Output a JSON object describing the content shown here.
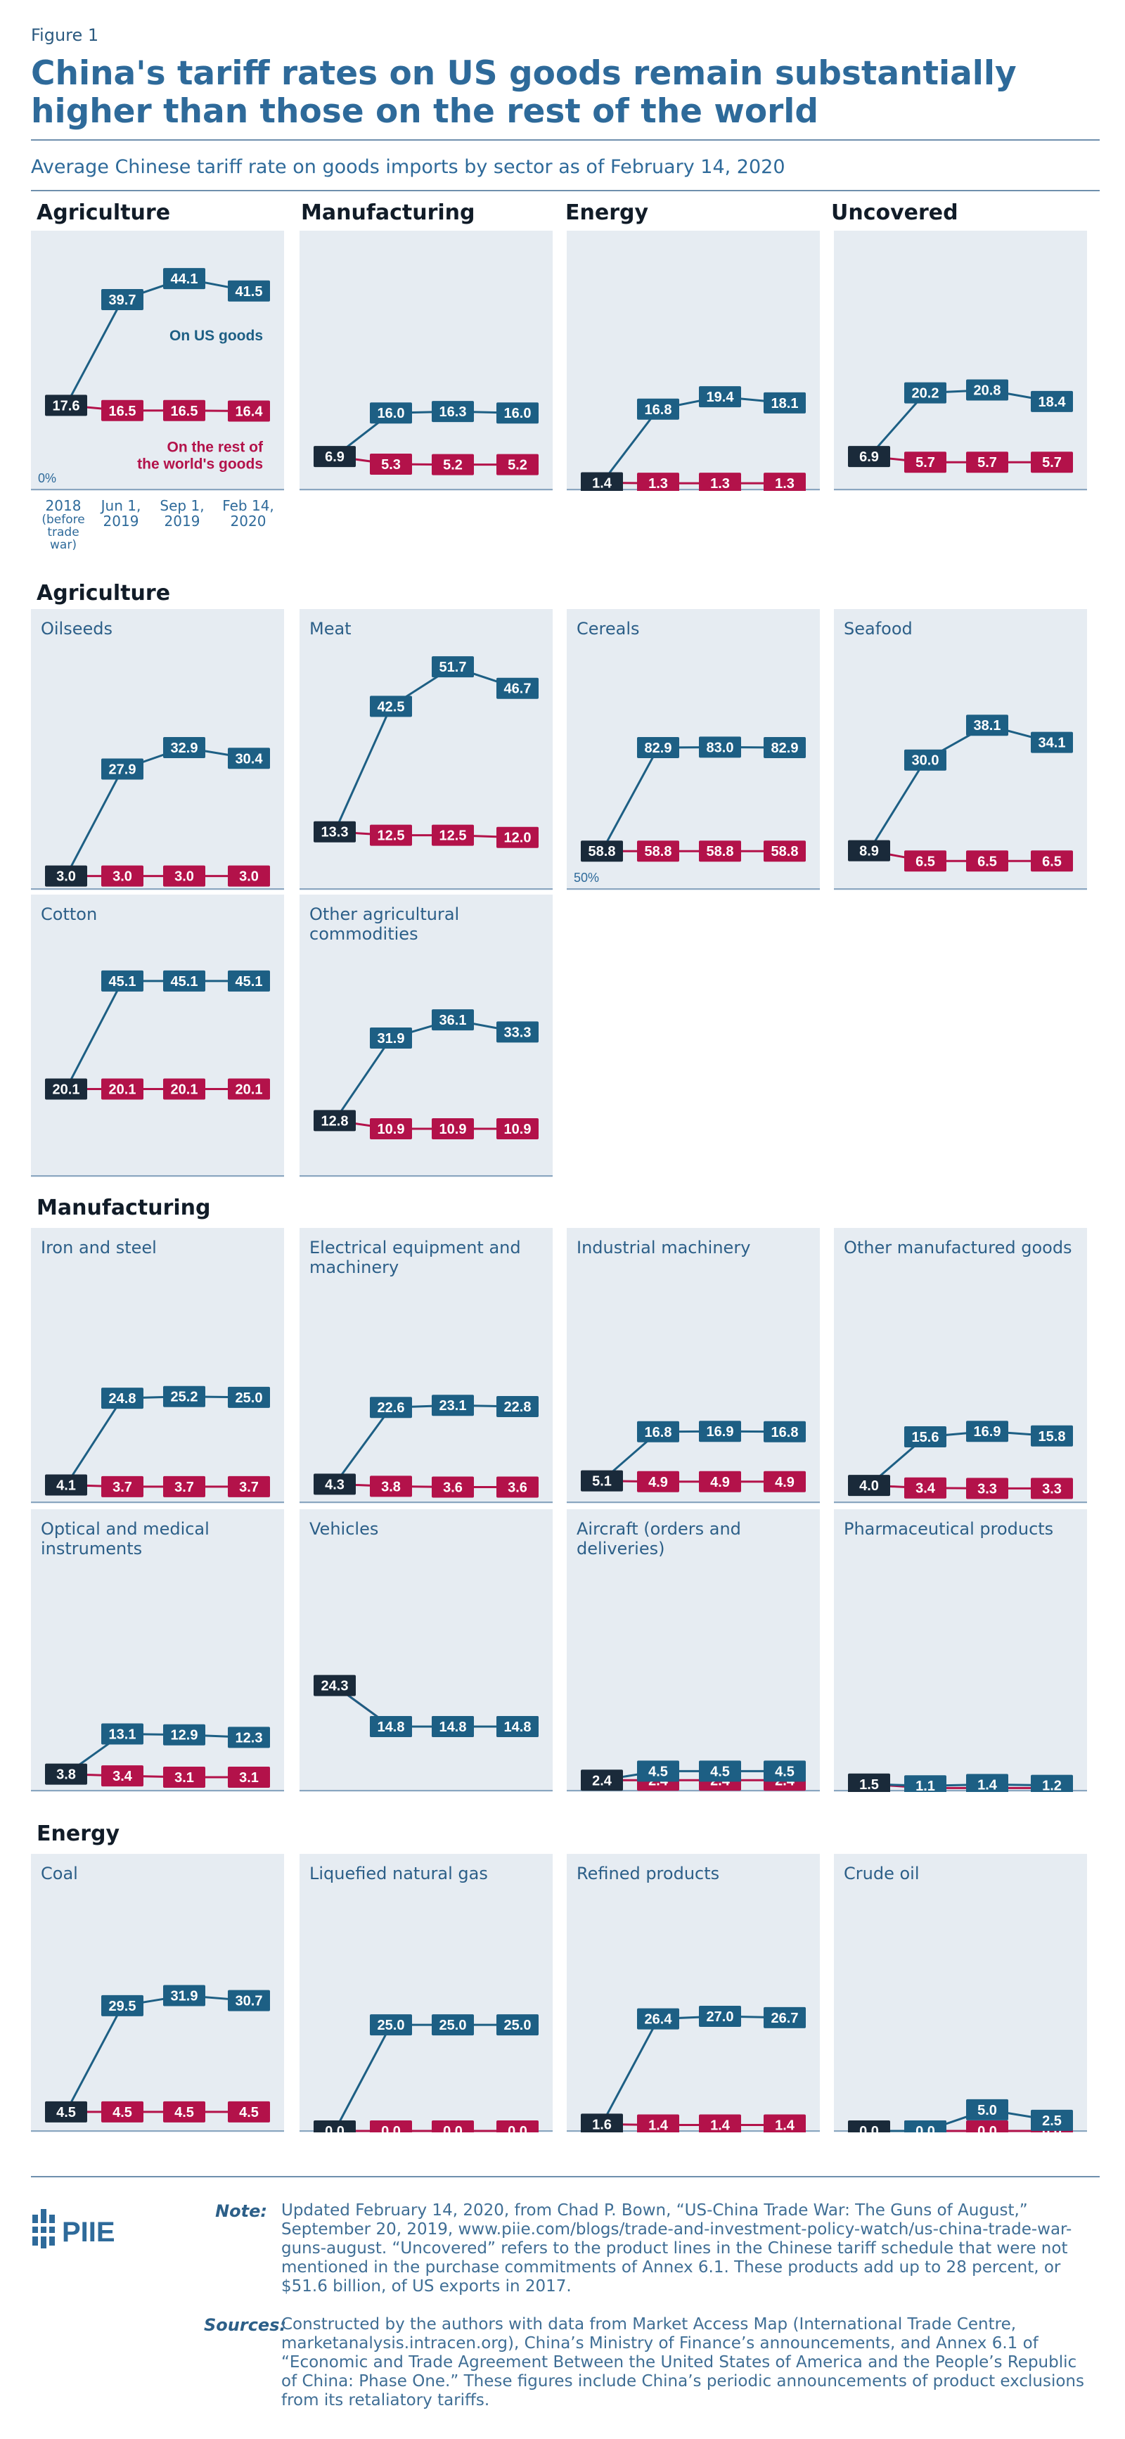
{
  "figure_label": "Figure 1",
  "title": "China's tariff rates on US goods remain substantially higher than those on the rest of the world",
  "subtitle": "Average Chinese tariff rate on goods imports by sector as of February 14, 2020",
  "sections": {
    "agriculture": "Agriculture",
    "manufacturing": "Manufacturing",
    "energy": "Energy"
  },
  "x_labels": [
    "2018 (before trade war)",
    "Jun 1, 2019",
    "Sep 1, 2019",
    "Feb 14, 2020"
  ],
  "x_label_parts": {
    "a1": "2018",
    "a2": "(before",
    "a3": "trade",
    "a4": "war)",
    "b1": "Jun 1,",
    "b2": "2019",
    "c1": "Sep 1,",
    "c2": "2019",
    "d1": "Feb 14,",
    "d2": "2020"
  },
  "colors": {
    "us": "#1d5f84",
    "world": "#b3124a",
    "base": "#1a2a3a",
    "panel_bg": "#e6ecf2",
    "title": "#2e6a9a"
  },
  "chart_data": [
    {
      "type": "line",
      "title": "Agriculture",
      "x": [
        "2018 (before trade war)",
        "Jun 1, 2019",
        "Sep 1, 2019",
        "Feb 14, 2020"
      ],
      "series": [
        {
          "name": "On US goods",
          "values": [
            17.6,
            39.7,
            44.1,
            41.5
          ]
        },
        {
          "name": "On the rest of the world's goods",
          "values": [
            17.6,
            16.5,
            16.5,
            16.4
          ]
        }
      ],
      "ylim": [
        0,
        50
      ],
      "baseline_label": "0%",
      "series_labels": {
        "us": "On US goods",
        "world1": "On the rest of",
        "world2": "the world's goods"
      }
    },
    {
      "type": "line",
      "title": "Manufacturing",
      "x": [
        "2018 (before trade war)",
        "Jun 1, 2019",
        "Sep 1, 2019",
        "Feb 14, 2020"
      ],
      "series": [
        {
          "name": "On US goods",
          "values": [
            6.9,
            16.0,
            16.3,
            16.0
          ]
        },
        {
          "name": "On the rest of the world's goods",
          "values": [
            6.9,
            5.3,
            5.2,
            5.2
          ]
        }
      ],
      "ylim": [
        0,
        50
      ]
    },
    {
      "type": "line",
      "title": "Energy",
      "x": [
        "2018 (before trade war)",
        "Jun 1, 2019",
        "Sep 1, 2019",
        "Feb 14, 2020"
      ],
      "series": [
        {
          "name": "On US goods",
          "values": [
            1.4,
            16.8,
            19.4,
            18.1
          ]
        },
        {
          "name": "On the rest of the world's goods",
          "values": [
            1.4,
            1.3,
            1.3,
            1.3
          ]
        }
      ],
      "ylim": [
        0,
        50
      ]
    },
    {
      "type": "line",
      "title": "Uncovered",
      "x": [
        "2018 (before trade war)",
        "Jun 1, 2019",
        "Sep 1, 2019",
        "Feb 14, 2020"
      ],
      "series": [
        {
          "name": "On US goods",
          "values": [
            6.9,
            20.2,
            20.8,
            18.4
          ]
        },
        {
          "name": "On the rest of the world's goods",
          "values": [
            6.9,
            5.7,
            5.7,
            5.7
          ]
        }
      ],
      "ylim": [
        0,
        50
      ]
    },
    {
      "type": "line",
      "title": "Oilseeds",
      "x": [
        "2018 (before trade war)",
        "Jun 1, 2019",
        "Sep 1, 2019",
        "Feb 14, 2020"
      ],
      "series": [
        {
          "name": "On US goods",
          "values": [
            3.0,
            27.9,
            32.9,
            30.4
          ]
        },
        {
          "name": "On the rest of the world's goods",
          "values": [
            3.0,
            3.0,
            3.0,
            3.0
          ]
        }
      ],
      "ylim": [
        0,
        55
      ]
    },
    {
      "type": "line",
      "title": "Meat",
      "x": [
        "2018 (before trade war)",
        "Jun 1, 2019",
        "Sep 1, 2019",
        "Feb 14, 2020"
      ],
      "series": [
        {
          "name": "On US goods",
          "values": [
            13.3,
            42.5,
            51.7,
            46.7
          ]
        },
        {
          "name": "On the rest of the world's goods",
          "values": [
            13.3,
            12.5,
            12.5,
            12.0
          ]
        }
      ],
      "ylim": [
        0,
        55
      ]
    },
    {
      "type": "line",
      "title": "Cereals",
      "x": [
        "2018 (before trade war)",
        "Jun 1, 2019",
        "Sep 1, 2019",
        "Feb 14, 2020"
      ],
      "series": [
        {
          "name": "On US goods",
          "values": [
            58.8,
            82.9,
            83.0,
            82.9
          ]
        },
        {
          "name": "On the rest of the world's goods",
          "values": [
            58.8,
            58.8,
            58.8,
            58.8
          ]
        }
      ],
      "ylim": [
        50,
        105
      ],
      "baseline_label": "50%"
    },
    {
      "type": "line",
      "title": "Seafood",
      "x": [
        "2018 (before trade war)",
        "Jun 1, 2019",
        "Sep 1, 2019",
        "Feb 14, 2020"
      ],
      "series": [
        {
          "name": "On US goods",
          "values": [
            8.9,
            30.0,
            38.1,
            34.1
          ]
        },
        {
          "name": "On the rest of the world's goods",
          "values": [
            8.9,
            6.5,
            6.5,
            6.5
          ]
        }
      ],
      "ylim": [
        0,
        55
      ]
    },
    {
      "type": "line",
      "title": "Cotton",
      "x": [
        "2018 (before trade war)",
        "Jun 1, 2019",
        "Sep 1, 2019",
        "Feb 14, 2020"
      ],
      "series": [
        {
          "name": "On US goods",
          "values": [
            20.1,
            45.1,
            45.1,
            45.1
          ]
        },
        {
          "name": "On the rest of the world's goods",
          "values": [
            20.1,
            20.1,
            20.1,
            20.1
          ]
        }
      ],
      "ylim": [
        0,
        55
      ]
    },
    {
      "type": "line",
      "title": "Other agricultural commodities",
      "x": [
        "2018 (before trade war)",
        "Jun 1, 2019",
        "Sep 1, 2019",
        "Feb 14, 2020"
      ],
      "series": [
        {
          "name": "On US goods",
          "values": [
            12.8,
            31.9,
            36.1,
            33.3
          ]
        },
        {
          "name": "On the rest of the world's goods",
          "values": [
            12.8,
            10.9,
            10.9,
            10.9
          ]
        }
      ],
      "ylim": [
        0,
        55
      ]
    },
    {
      "type": "line",
      "title": "Iron and steel",
      "x": [
        "2018 (before trade war)",
        "Jun 1, 2019",
        "Sep 1, 2019",
        "Feb 14, 2020"
      ],
      "series": [
        {
          "name": "On US goods",
          "values": [
            4.1,
            24.8,
            25.2,
            25.0
          ]
        },
        {
          "name": "On the rest of the world's goods",
          "values": [
            4.1,
            3.7,
            3.7,
            3.7
          ]
        }
      ],
      "ylim": [
        0,
        55
      ]
    },
    {
      "type": "line",
      "title": "Electrical equipment and machinery",
      "x": [
        "2018 (before trade war)",
        "Jun 1, 2019",
        "Sep 1, 2019",
        "Feb 14, 2020"
      ],
      "series": [
        {
          "name": "On US goods",
          "values": [
            4.3,
            22.6,
            23.1,
            22.8
          ]
        },
        {
          "name": "On the rest of the world's goods",
          "values": [
            4.3,
            3.8,
            3.6,
            3.6
          ]
        }
      ],
      "ylim": [
        0,
        55
      ]
    },
    {
      "type": "line",
      "title": "Industrial machinery",
      "x": [
        "2018 (before trade war)",
        "Jun 1, 2019",
        "Sep 1, 2019",
        "Feb 14, 2020"
      ],
      "series": [
        {
          "name": "On US goods",
          "values": [
            5.1,
            16.8,
            16.9,
            16.8
          ]
        },
        {
          "name": "On the rest of the world's goods",
          "values": [
            5.1,
            4.9,
            4.9,
            4.9
          ]
        }
      ],
      "ylim": [
        0,
        55
      ]
    },
    {
      "type": "line",
      "title": "Other manufactured goods",
      "x": [
        "2018 (before trade war)",
        "Jun 1, 2019",
        "Sep 1, 2019",
        "Feb 14, 2020"
      ],
      "series": [
        {
          "name": "On US goods",
          "values": [
            4.0,
            15.6,
            16.9,
            15.8
          ]
        },
        {
          "name": "On the rest of the world's goods",
          "values": [
            4.0,
            3.4,
            3.3,
            3.3
          ]
        }
      ],
      "ylim": [
        0,
        55
      ]
    },
    {
      "type": "line",
      "title": "Optical and medical instruments",
      "x": [
        "2018 (before trade war)",
        "Jun 1, 2019",
        "Sep 1, 2019",
        "Feb 14, 2020"
      ],
      "series": [
        {
          "name": "On US goods",
          "values": [
            3.8,
            13.1,
            12.9,
            12.3
          ]
        },
        {
          "name": "On the rest of the world's goods",
          "values": [
            3.8,
            3.4,
            3.1,
            3.1
          ]
        }
      ],
      "ylim": [
        0,
        55
      ]
    },
    {
      "type": "line",
      "title": "Vehicles",
      "x": [
        "2018 (before trade war)",
        "Jun 1, 2019",
        "Sep 1, 2019",
        "Feb 14, 2020"
      ],
      "series": [
        {
          "name": "On US goods",
          "values": [
            24.3,
            14.8,
            14.8,
            14.8
          ]
        },
        {
          "name": "On the rest of the world's goods",
          "values": [
            24.3,
            14.8,
            14.8,
            14.8
          ]
        }
      ],
      "ylim": [
        0,
        55
      ]
    },
    {
      "type": "line",
      "title": "Aircraft (orders and deliveries)",
      "x": [
        "2018 (before trade war)",
        "Jun 1, 2019",
        "Sep 1, 2019",
        "Feb 14, 2020"
      ],
      "series": [
        {
          "name": "On US goods",
          "values": [
            2.4,
            4.5,
            4.5,
            4.5
          ]
        },
        {
          "name": "On the rest of the world's goods",
          "values": [
            2.4,
            2.4,
            2.4,
            2.4
          ]
        }
      ],
      "ylim": [
        0,
        55
      ]
    },
    {
      "type": "line",
      "title": "Pharmaceutical products",
      "x": [
        "2018 (before trade war)",
        "Jun 1, 2019",
        "Sep 1, 2019",
        "Feb 14, 2020"
      ],
      "series": [
        {
          "name": "On US goods",
          "values": [
            1.5,
            1.1,
            1.4,
            1.2
          ]
        },
        {
          "name": "On the rest of the world's goods",
          "values": [
            1.5,
            0.6,
            0.6,
            0.6
          ]
        }
      ],
      "ylim": [
        0,
        55
      ]
    },
    {
      "type": "line",
      "title": "Coal",
      "x": [
        "2018 (before trade war)",
        "Jun 1, 2019",
        "Sep 1, 2019",
        "Feb 14, 2020"
      ],
      "series": [
        {
          "name": "On US goods",
          "values": [
            4.5,
            29.5,
            31.9,
            30.7
          ]
        },
        {
          "name": "On the rest of the world's goods",
          "values": [
            4.5,
            4.5,
            4.5,
            4.5
          ]
        }
      ],
      "ylim": [
        0,
        55
      ]
    },
    {
      "type": "line",
      "title": "Liquefied natural gas",
      "x": [
        "2018 (before trade war)",
        "Jun 1, 2019",
        "Sep 1, 2019",
        "Feb 14, 2020"
      ],
      "series": [
        {
          "name": "On US goods",
          "values": [
            0.0,
            25.0,
            25.0,
            25.0
          ]
        },
        {
          "name": "On the rest of the world's goods",
          "values": [
            0.0,
            0.0,
            0.0,
            0.0
          ]
        }
      ],
      "ylim": [
        0,
        55
      ]
    },
    {
      "type": "line",
      "title": "Refined products",
      "x": [
        "2018 (before trade war)",
        "Jun 1, 2019",
        "Sep 1, 2019",
        "Feb 14, 2020"
      ],
      "series": [
        {
          "name": "On US goods",
          "values": [
            1.6,
            26.4,
            27.0,
            26.7
          ]
        },
        {
          "name": "On the rest of the world's goods",
          "values": [
            1.6,
            1.4,
            1.4,
            1.4
          ]
        }
      ],
      "ylim": [
        0,
        55
      ]
    },
    {
      "type": "line",
      "title": "Crude oil",
      "x": [
        "2018 (before trade war)",
        "Jun 1, 2019",
        "Sep 1, 2019",
        "Feb 14, 2020"
      ],
      "series": [
        {
          "name": "On US goods",
          "values": [
            0.0,
            0.0,
            5.0,
            2.5
          ]
        },
        {
          "name": "On the rest of the world's goods",
          "values": [
            0.0,
            0.0,
            0.0,
            0.0
          ]
        }
      ],
      "ylim": [
        0,
        55
      ]
    }
  ],
  "footer": {
    "logo_text": "PIIE",
    "note_label": "Note:",
    "note": "Updated February 14, 2020, from Chad P. Bown, “US-China Trade War: The Guns of August,” September 20, 2019, www.piie.com/blogs/trade-and-investment-policy-watch/us-china-trade-war-guns-august. “Uncovered” refers to the product lines in the Chinese tariff schedule that were not mentioned in the purchase commitments of Annex 6.1. These products add up to 28 percent, or $51.6 billion, of US exports in 2017.",
    "sources_label": "Sources:",
    "sources": "Constructed by the authors with data from Market Access Map (International Trade Centre, marketanalysis.intracen.org), China’s Ministry of Finance’s announcements, and Annex 6.1 of “Economic and Trade Agreement Between the United States of America and the People’s Republic of China: Phase One.” These figures include China’s periodic announcements of product exclusions from its retaliatory tariffs."
  }
}
